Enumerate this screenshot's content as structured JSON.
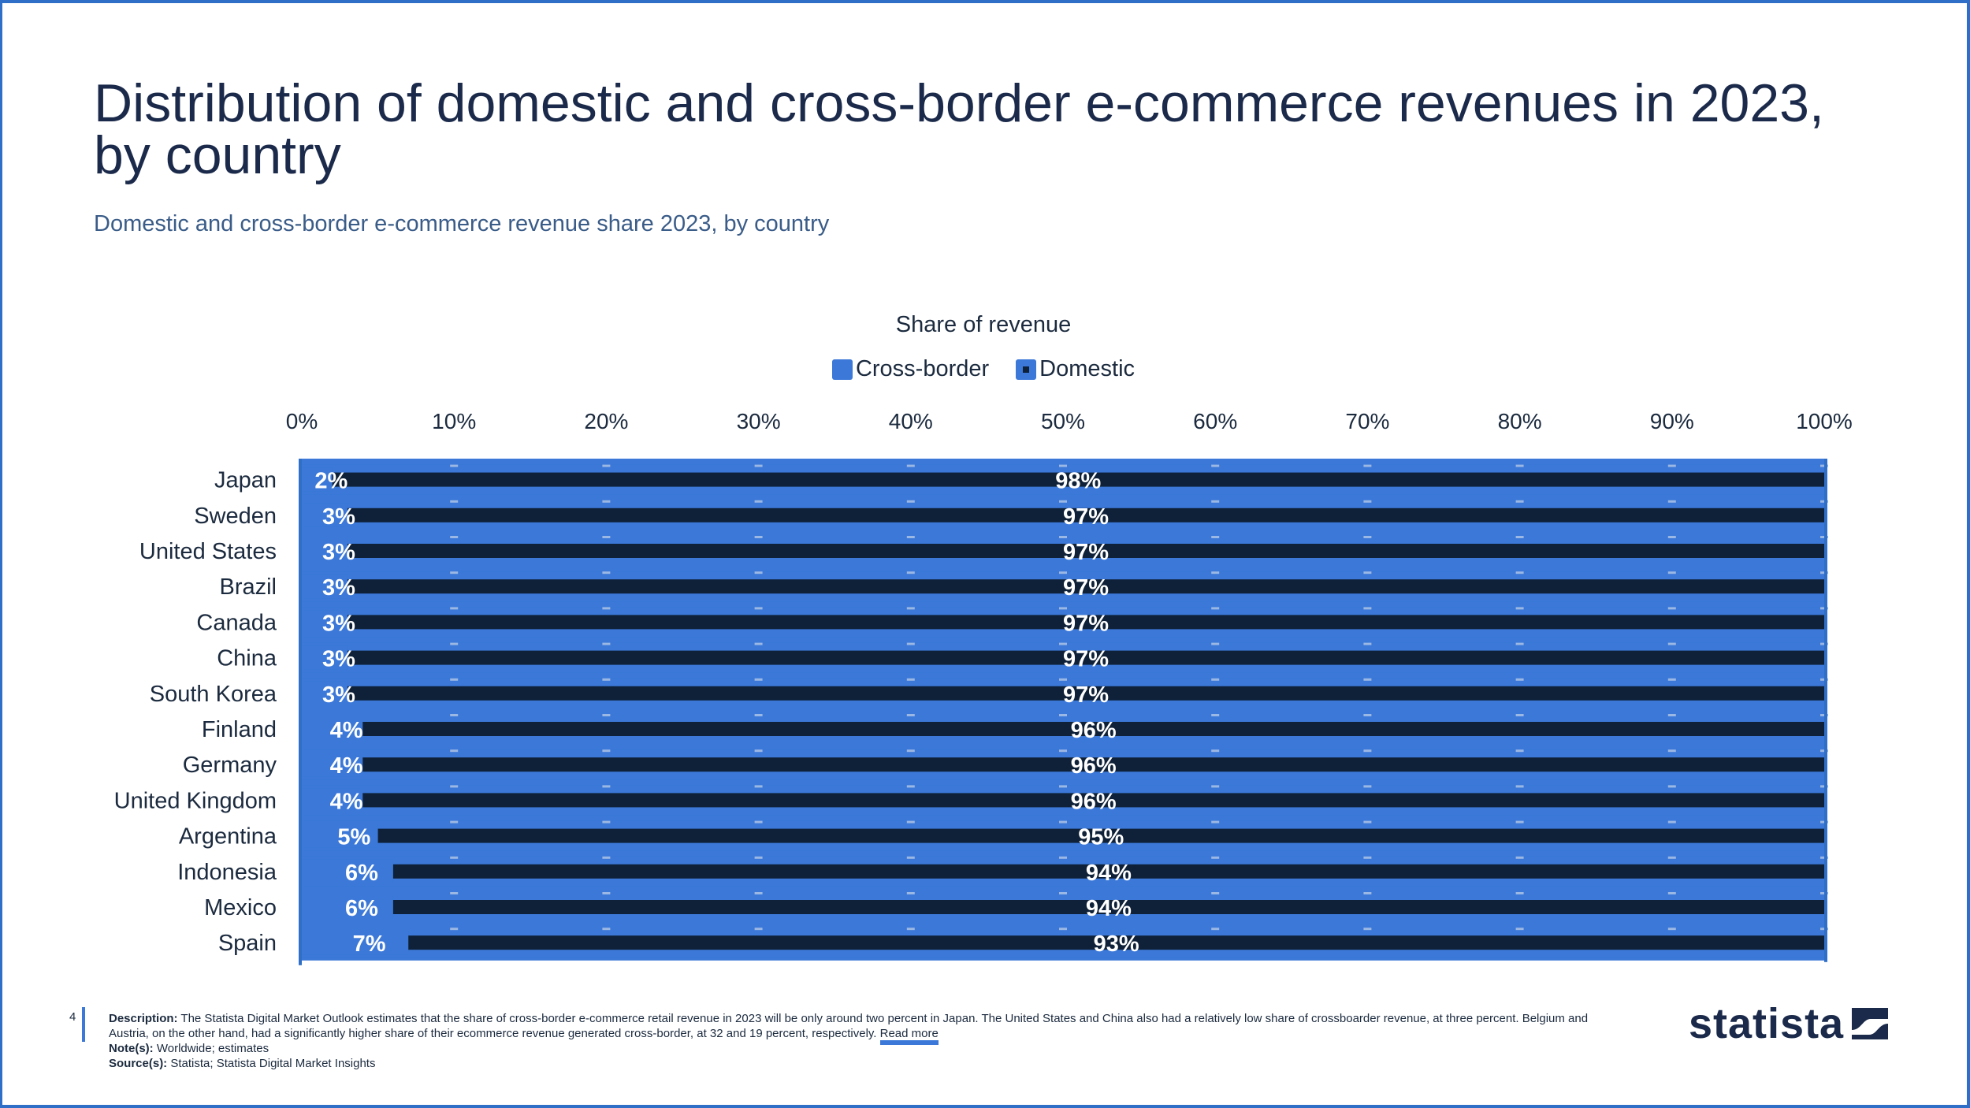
{
  "title": "Distribution of domestic and cross-border e-commerce revenues in 2023, by country",
  "subtitle": "Domestic and cross-border e-commerce revenue share 2023, by country",
  "footer": {
    "page_number": "4",
    "description_label": "Description:",
    "description_text": "The Statista Digital Market Outlook estimates that the share of cross-border e-commerce retail revenue in 2023 will be only around two percent in Japan. The United States and China also had a relatively low share of crossboarder revenue, at three percent. Belgium and Austria, on the other hand, had a significantly higher share of their ecommerce revenue generated cross-border, at 32 and 19 percent, respectively.",
    "read_more": "Read more",
    "note_label": "Note(s):",
    "note_text": "Worldwide; estimates",
    "source_label": "Source(s):",
    "source_text": "Statista; Statista Digital Market Insights"
  },
  "logo": {
    "text": "statista",
    "icon": "statista-logo-icon"
  },
  "colors": {
    "cross_border": "#3b78d8",
    "domestic": "#0f2138",
    "accent": "#2f6fc7"
  },
  "chart_data": {
    "type": "bar",
    "orientation": "horizontal",
    "stacked": true,
    "xlabel": "Share of revenue",
    "xlim": [
      0,
      100
    ],
    "x_ticks": [
      "0%",
      "10%",
      "20%",
      "30%",
      "40%",
      "50%",
      "60%",
      "70%",
      "80%",
      "90%",
      "100%"
    ],
    "legend_position": "top-center",
    "categories": [
      "Japan",
      "Sweden",
      "United States",
      "Brazil",
      "Canada",
      "China",
      "South Korea",
      "Finland",
      "Germany",
      "United Kingdom",
      "Argentina",
      "Indonesia",
      "Mexico",
      "Spain"
    ],
    "series": [
      {
        "name": "Cross-border",
        "values": [
          2,
          3,
          3,
          3,
          3,
          3,
          3,
          4,
          4,
          4,
          5,
          6,
          6,
          7
        ],
        "labels": [
          "2%",
          "3%",
          "3%",
          "3%",
          "3%",
          "3%",
          "3%",
          "4%",
          "4%",
          "4%",
          "5%",
          "6%",
          "6%",
          "7%"
        ]
      },
      {
        "name": "Domestic",
        "values": [
          98,
          97,
          97,
          97,
          97,
          97,
          97,
          96,
          96,
          96,
          95,
          94,
          94,
          93
        ],
        "labels": [
          "98%",
          "97%",
          "97%",
          "97%",
          "97%",
          "97%",
          "97%",
          "96%",
          "96%",
          "96%",
          "95%",
          "94%",
          "94%",
          "93%"
        ]
      }
    ]
  }
}
